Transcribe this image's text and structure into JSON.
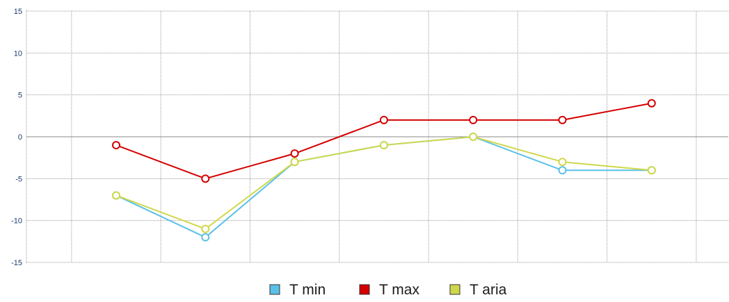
{
  "chart_data": {
    "type": "line",
    "title": "",
    "xlabel": "",
    "ylabel": "",
    "categories": [
      "",
      "",
      "",
      "",
      "",
      "",
      ""
    ],
    "ylim": [
      -15,
      15
    ],
    "yticks": [
      -15,
      -10,
      -5,
      0,
      5,
      10,
      15
    ],
    "grid": true,
    "legend_position": "bottom-center",
    "series": [
      {
        "name": "T min",
        "color": "#5bc0e8",
        "values": [
          -7,
          -12,
          -3,
          -1,
          0,
          -4,
          -4
        ]
      },
      {
        "name": "T max",
        "color": "#d40000",
        "values": [
          -1,
          -5,
          -2,
          2,
          2,
          2,
          4
        ]
      },
      {
        "name": "T aria",
        "color": "#cfd84a",
        "values": [
          -7,
          -11,
          -3,
          -1,
          0,
          -3,
          -4
        ]
      }
    ]
  }
}
